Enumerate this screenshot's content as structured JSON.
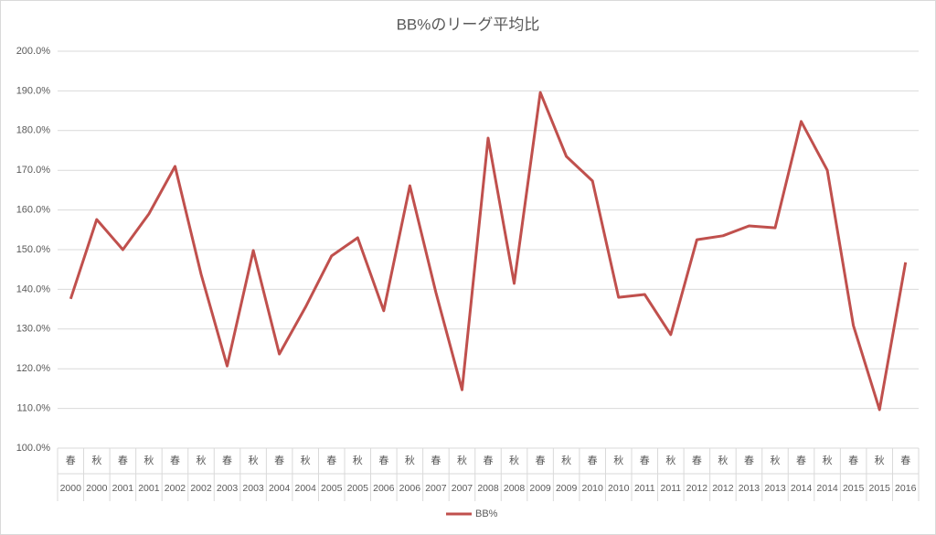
{
  "chart_data": {
    "type": "line",
    "title": "BB%のリーグ平均比",
    "categories": [
      "春",
      "秋",
      "春",
      "秋",
      "春",
      "秋",
      "春",
      "秋",
      "春",
      "秋",
      "春",
      "秋",
      "春",
      "秋",
      "春",
      "秋",
      "春",
      "秋",
      "春",
      "秋",
      "春",
      "秋",
      "春",
      "秋",
      "春",
      "秋",
      "春",
      "秋",
      "春",
      "秋",
      "春",
      "秋",
      "春"
    ],
    "category_years": [
      "2000",
      "2000",
      "2001",
      "2001",
      "2002",
      "2002",
      "2003",
      "2003",
      "2004",
      "2004",
      "2005",
      "2005",
      "2006",
      "2006",
      "2007",
      "2007",
      "2008",
      "2008",
      "2009",
      "2009",
      "2010",
      "2010",
      "2011",
      "2011",
      "2012",
      "2012",
      "2013",
      "2013",
      "2014",
      "2014",
      "2015",
      "2015",
      "2016"
    ],
    "series": [
      {
        "name": "BB%",
        "color": "#c0504d",
        "values": [
          137.6,
          157.6,
          150.0,
          159.0,
          171.0,
          143.8,
          120.7,
          149.8,
          123.7,
          135.5,
          148.4,
          153.0,
          134.6,
          166.1,
          139.2,
          114.7,
          178.1,
          141.5,
          189.6,
          173.5,
          167.3,
          138.0,
          138.7,
          128.6,
          152.5,
          153.5,
          156.0,
          155.5,
          182.3,
          170.0,
          130.9,
          109.7,
          146.8
        ]
      }
    ],
    "ylim": [
      100,
      200
    ],
    "yticks": [
      {
        "value": 100,
        "label": "100.0%"
      },
      {
        "value": 110,
        "label": "110.0%"
      },
      {
        "value": 120,
        "label": "120.0%"
      },
      {
        "value": 130,
        "label": "130.0%"
      },
      {
        "value": 140,
        "label": "140.0%"
      },
      {
        "value": 150,
        "label": "150.0%"
      },
      {
        "value": 160,
        "label": "160.0%"
      },
      {
        "value": 170,
        "label": "170.0%"
      },
      {
        "value": 180,
        "label": "180.0%"
      },
      {
        "value": 190,
        "label": "190.0%"
      },
      {
        "value": 200,
        "label": "200.0%"
      }
    ],
    "grid": true,
    "legend": "bottom"
  }
}
